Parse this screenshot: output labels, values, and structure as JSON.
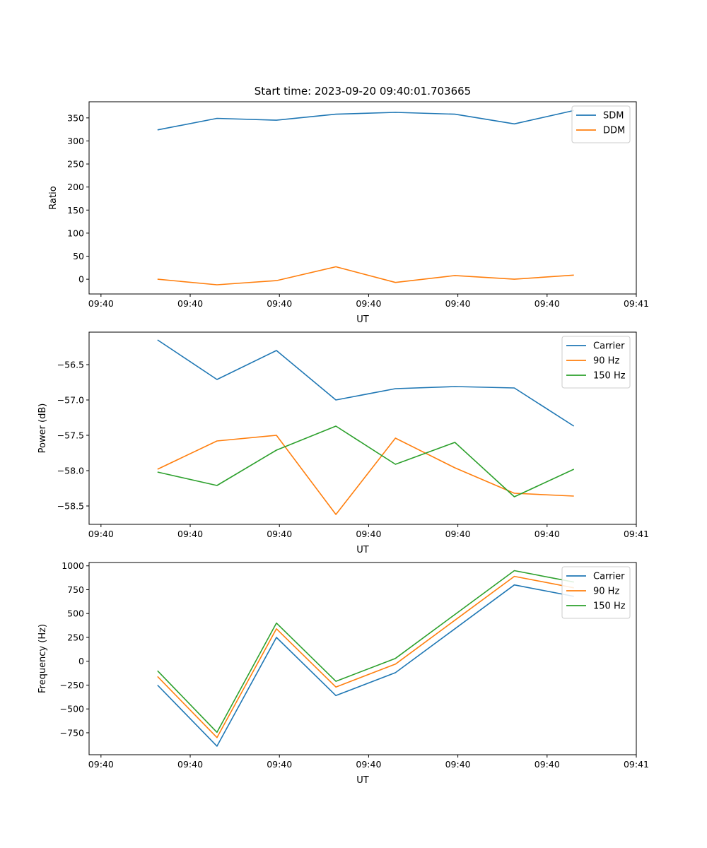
{
  "chart_data": [
    {
      "type": "line",
      "title": "Start time: 2023-09-20 09:40:01.703665",
      "xlabel": "UT",
      "ylabel": "Ratio",
      "xlim": [
        -0.7,
        8.5
      ],
      "ylim": [
        -32,
        385
      ],
      "xticks": [
        {
          "x": -0.5,
          "label": "09:40"
        },
        {
          "x": 1,
          "label": "09:40"
        },
        {
          "x": 2.5,
          "label": "09:40"
        },
        {
          "x": 4,
          "label": "09:40"
        },
        {
          "x": 5.5,
          "label": "09:40"
        },
        {
          "x": 7,
          "label": "09:40"
        },
        {
          "x": 8.5,
          "label": "09:41"
        }
      ],
      "yticks": [
        0,
        50,
        100,
        150,
        200,
        250,
        300,
        350
      ],
      "legend": "top-right",
      "x": [
        0.45,
        1.45,
        2.45,
        3.45,
        4.45,
        5.45,
        6.45,
        7.45
      ],
      "series": [
        {
          "name": "SDM",
          "color": "#1f77b4",
          "values": [
            324,
            349,
            345,
            358,
            362,
            358,
            337,
            366
          ]
        },
        {
          "name": "DDM",
          "color": "#ff7f0e",
          "values": [
            0,
            -12,
            -3,
            27,
            -7,
            8,
            0,
            9
          ]
        }
      ]
    },
    {
      "type": "line",
      "title": "",
      "xlabel": "UT",
      "ylabel": "Power (dB)",
      "xlim": [
        -0.7,
        8.5
      ],
      "ylim": [
        -58.76,
        -56.04
      ],
      "xticks": [
        {
          "x": -0.5,
          "label": "09:40"
        },
        {
          "x": 1,
          "label": "09:40"
        },
        {
          "x": 2.5,
          "label": "09:40"
        },
        {
          "x": 4,
          "label": "09:40"
        },
        {
          "x": 5.5,
          "label": "09:40"
        },
        {
          "x": 7,
          "label": "09:40"
        },
        {
          "x": 8.5,
          "label": "09:41"
        }
      ],
      "yticks": [
        -56.5,
        -57.0,
        -57.5,
        -58.0,
        -58.5
      ],
      "ytick_labels": [
        "−56.5",
        "−57.0",
        "−57.5",
        "−58.0",
        "−58.5"
      ],
      "legend": "top-right",
      "x": [
        0.45,
        1.45,
        2.45,
        3.45,
        4.45,
        5.45,
        6.45,
        7.45
      ],
      "series": [
        {
          "name": "Carrier",
          "color": "#1f77b4",
          "values": [
            -56.15,
            -56.71,
            -56.3,
            -57.0,
            -56.84,
            -56.81,
            -56.83,
            -57.37
          ]
        },
        {
          "name": "90 Hz",
          "color": "#ff7f0e",
          "values": [
            -57.98,
            -57.58,
            -57.5,
            -58.62,
            -57.54,
            -57.96,
            -58.32,
            -58.36
          ]
        },
        {
          "name": "150 Hz",
          "color": "#2ca02c",
          "values": [
            -58.02,
            -58.21,
            -57.71,
            -57.37,
            -57.91,
            -57.6,
            -58.37,
            -57.98
          ]
        }
      ]
    },
    {
      "type": "line",
      "title": "",
      "xlabel": "UT",
      "ylabel": "Frequency (Hz)",
      "xlim": [
        -0.7,
        8.5
      ],
      "ylim": [
        -980,
        1035
      ],
      "xticks": [
        {
          "x": -0.5,
          "label": "09:40"
        },
        {
          "x": 1,
          "label": "09:40"
        },
        {
          "x": 2.5,
          "label": "09:40"
        },
        {
          "x": 4,
          "label": "09:40"
        },
        {
          "x": 5.5,
          "label": "09:40"
        },
        {
          "x": 7,
          "label": "09:40"
        },
        {
          "x": 8.5,
          "label": "09:41"
        }
      ],
      "yticks": [
        1000,
        750,
        500,
        250,
        0,
        -250,
        -500,
        -750
      ],
      "ytick_labels": [
        "1000",
        "750",
        "500",
        "250",
        "0",
        "−250",
        "−500",
        "−750"
      ],
      "legend": "top-right",
      "x": [
        0.45,
        1.45,
        2.45,
        3.45,
        4.45,
        5.45,
        6.45,
        7.45
      ],
      "series": [
        {
          "name": "Carrier",
          "color": "#1f77b4",
          "values": [
            -250,
            -890,
            250,
            -360,
            -120,
            340,
            800,
            680
          ]
        },
        {
          "name": "90 Hz",
          "color": "#ff7f0e",
          "values": [
            -160,
            -800,
            340,
            -270,
            -30,
            430,
            890,
            770
          ]
        },
        {
          "name": "150 Hz",
          "color": "#2ca02c",
          "values": [
            -100,
            -745,
            400,
            -210,
            30,
            490,
            950,
            830
          ]
        }
      ]
    }
  ]
}
